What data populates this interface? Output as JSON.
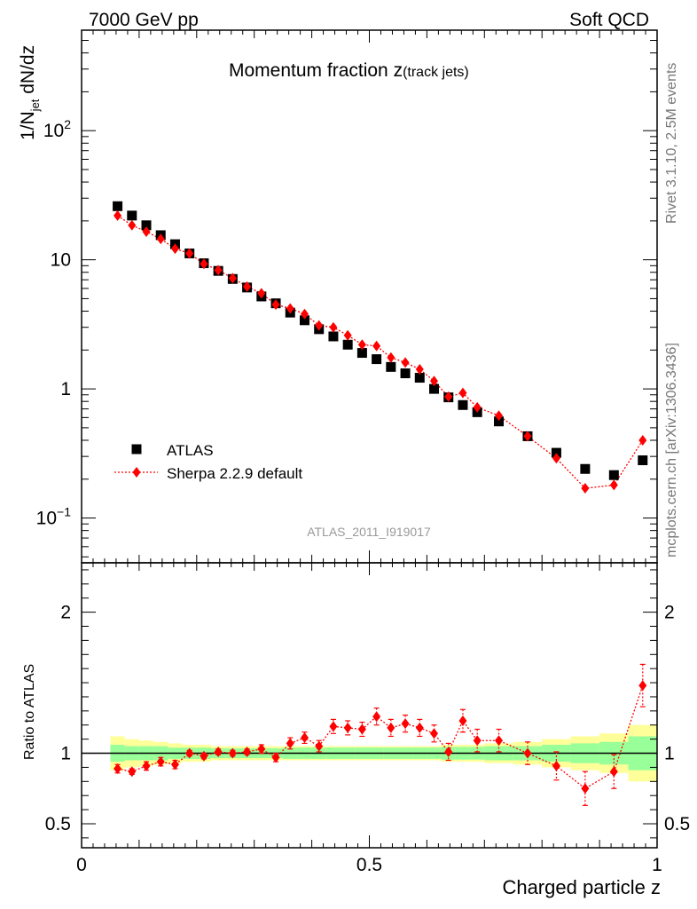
{
  "header": {
    "left": "7000 GeV pp",
    "right": "Soft QCD"
  },
  "side_labels": {
    "upper": "Rivet 3.1.10,  2.5M events",
    "lower": "mcplots.cern.ch [arXiv:1306.3436]"
  },
  "chart_data": {
    "type": "scatter",
    "title": "Momentum fraction",
    "title_symbol": "z",
    "title_suffix": "(track jets)",
    "analysis_tag": "ATLAS_2011_I919017",
    "xlabel": "Charged particle z",
    "xlim": [
      0,
      1
    ],
    "x_ticks": [
      "0",
      "0.5",
      "1"
    ],
    "main": {
      "ylabel_parts": [
        "1/N",
        "jet",
        " dN/dz"
      ],
      "yscale": "log",
      "ylim": [
        0.045,
        600
      ],
      "y_ticks": [
        {
          "value": 0.1,
          "base": "10",
          "exp": "−1"
        },
        {
          "value": 1,
          "label": "1"
        },
        {
          "value": 10,
          "label": "10"
        },
        {
          "value": 100,
          "base": "10",
          "exp": "2"
        }
      ],
      "legend_position": "bottom-left"
    },
    "ratio": {
      "ylabel": "Ratio to ATLAS",
      "ylim": [
        0.33,
        2.35
      ],
      "y_ticks": [
        "0.5",
        "1",
        "2"
      ],
      "y_tick_values": [
        0.5,
        1,
        2
      ],
      "band_colors": {
        "inner": "#99ff99",
        "outer": "#ffff99"
      }
    },
    "series": [
      {
        "name": "ATLAS",
        "color": "#000000",
        "marker": "square",
        "x": [
          0.0625,
          0.0875,
          0.1125,
          0.1375,
          0.1625,
          0.1875,
          0.2125,
          0.2375,
          0.2625,
          0.2875,
          0.3125,
          0.3375,
          0.3625,
          0.3875,
          0.4125,
          0.4375,
          0.4625,
          0.4875,
          0.5125,
          0.5375,
          0.5625,
          0.5875,
          0.6125,
          0.6375,
          0.6625,
          0.6875,
          0.725,
          0.775,
          0.825,
          0.875,
          0.925,
          0.975
        ],
        "y": [
          26,
          22,
          18.5,
          15.5,
          13.2,
          11.2,
          9.4,
          8.2,
          7.1,
          6.1,
          5.2,
          4.6,
          3.9,
          3.4,
          2.9,
          2.55,
          2.2,
          1.9,
          1.7,
          1.48,
          1.32,
          1.22,
          1.0,
          0.86,
          0.75,
          0.66,
          0.56,
          0.43,
          0.32,
          0.24,
          0.215,
          0.28
        ]
      },
      {
        "name": "Sherpa 2.2.9 default",
        "color": "#ff0000",
        "marker": "diamond",
        "line": "dotted",
        "x": [
          0.0625,
          0.0875,
          0.1125,
          0.1375,
          0.1625,
          0.1875,
          0.2125,
          0.2375,
          0.2625,
          0.2875,
          0.3125,
          0.3375,
          0.3625,
          0.3875,
          0.4125,
          0.4375,
          0.4625,
          0.4875,
          0.5125,
          0.5375,
          0.5625,
          0.5875,
          0.6125,
          0.6375,
          0.6625,
          0.6875,
          0.725,
          0.775,
          0.825,
          0.875,
          0.925,
          0.975
        ],
        "y": [
          22,
          18.5,
          16.5,
          14.5,
          12.2,
          11.2,
          9.3,
          8.3,
          7.2,
          6.2,
          5.5,
          4.5,
          4.2,
          3.8,
          3.1,
          3.0,
          2.6,
          2.2,
          2.15,
          1.75,
          1.6,
          1.42,
          1.15,
          0.87,
          0.93,
          0.72,
          0.62,
          0.43,
          0.29,
          0.17,
          0.18,
          0.4
        ]
      }
    ],
    "ratio_values": [
      0.89,
      0.87,
      0.91,
      0.94,
      0.92,
      1.0,
      0.98,
      1.01,
      1.0,
      1.01,
      1.03,
      0.97,
      1.07,
      1.11,
      1.05,
      1.19,
      1.18,
      1.17,
      1.26,
      1.18,
      1.21,
      1.18,
      1.14,
      1.01,
      1.23,
      1.09,
      1.09,
      1.0,
      0.91,
      0.75,
      0.87,
      1.48
    ],
    "ratio_errors": [
      0.03,
      0.02,
      0.03,
      0.03,
      0.03,
      0.02,
      0.02,
      0.02,
      0.02,
      0.02,
      0.03,
      0.03,
      0.04,
      0.04,
      0.04,
      0.05,
      0.05,
      0.05,
      0.06,
      0.06,
      0.06,
      0.06,
      0.06,
      0.06,
      0.08,
      0.08,
      0.08,
      0.08,
      0.1,
      0.12,
      0.12,
      0.15
    ],
    "band_edges": [
      0.05,
      0.075,
      0.1,
      0.125,
      0.15,
      0.175,
      0.2,
      0.225,
      0.25,
      0.275,
      0.3,
      0.325,
      0.35,
      0.375,
      0.4,
      0.425,
      0.45,
      0.475,
      0.5,
      0.525,
      0.55,
      0.575,
      0.6,
      0.625,
      0.65,
      0.675,
      0.7,
      0.75,
      0.8,
      0.85,
      0.9,
      0.95,
      1.0
    ],
    "band_inner": [
      0.06,
      0.05,
      0.05,
      0.05,
      0.04,
      0.04,
      0.04,
      0.035,
      0.035,
      0.035,
      0.035,
      0.035,
      0.04,
      0.04,
      0.04,
      0.04,
      0.04,
      0.04,
      0.04,
      0.04,
      0.04,
      0.04,
      0.04,
      0.045,
      0.045,
      0.045,
      0.05,
      0.05,
      0.06,
      0.07,
      0.08,
      0.12
    ],
    "band_outer": [
      0.12,
      0.1,
      0.09,
      0.08,
      0.07,
      0.06,
      0.06,
      0.05,
      0.05,
      0.05,
      0.05,
      0.05,
      0.05,
      0.05,
      0.05,
      0.05,
      0.05,
      0.05,
      0.05,
      0.05,
      0.05,
      0.05,
      0.05,
      0.06,
      0.06,
      0.06,
      0.07,
      0.08,
      0.1,
      0.12,
      0.14,
      0.2
    ]
  }
}
